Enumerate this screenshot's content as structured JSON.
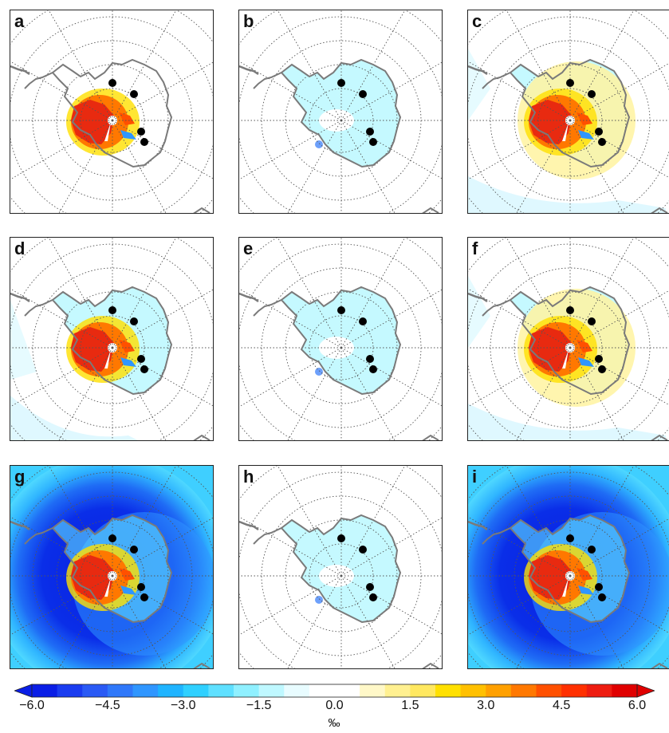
{
  "panels": [
    {
      "label": "a",
      "pattern": "warm"
    },
    {
      "label": "b",
      "pattern": "lightcool"
    },
    {
      "label": "c",
      "pattern": "warmyellow"
    },
    {
      "label": "d",
      "pattern": "warmcool"
    },
    {
      "label": "e",
      "pattern": "lightcool"
    },
    {
      "label": "f",
      "pattern": "warmyellow"
    },
    {
      "label": "g",
      "pattern": "coldocean"
    },
    {
      "label": "h",
      "pattern": "lightcool"
    },
    {
      "label": "i",
      "pattern": "coldocean"
    }
  ],
  "colorbar": {
    "ticks": [
      "−6.0",
      "−4.5",
      "−3.0",
      "−1.5",
      "0.0",
      "1.5",
      "3.0",
      "4.5",
      "6.0"
    ],
    "unit": "‰",
    "range": [
      -6.0,
      6.0
    ],
    "colors": [
      "#0a1ee6",
      "#1a3cf0",
      "#2a5af5",
      "#2f78fa",
      "#2f96ff",
      "#1fb4ff",
      "#2fd0ff",
      "#5fe0ff",
      "#8ff0ff",
      "#bff8ff",
      "#e8fcff",
      "#ffffff",
      "#ffffff",
      "#fff8c8",
      "#fff090",
      "#ffe860",
      "#ffe000",
      "#ffc000",
      "#ffa000",
      "#ff7800",
      "#ff5000",
      "#ff3000",
      "#ee1c10",
      "#e00000"
    ]
  },
  "colors": {
    "warm": "#e82a10",
    "coast": "#7a7a7a",
    "grid": "#555555"
  }
}
